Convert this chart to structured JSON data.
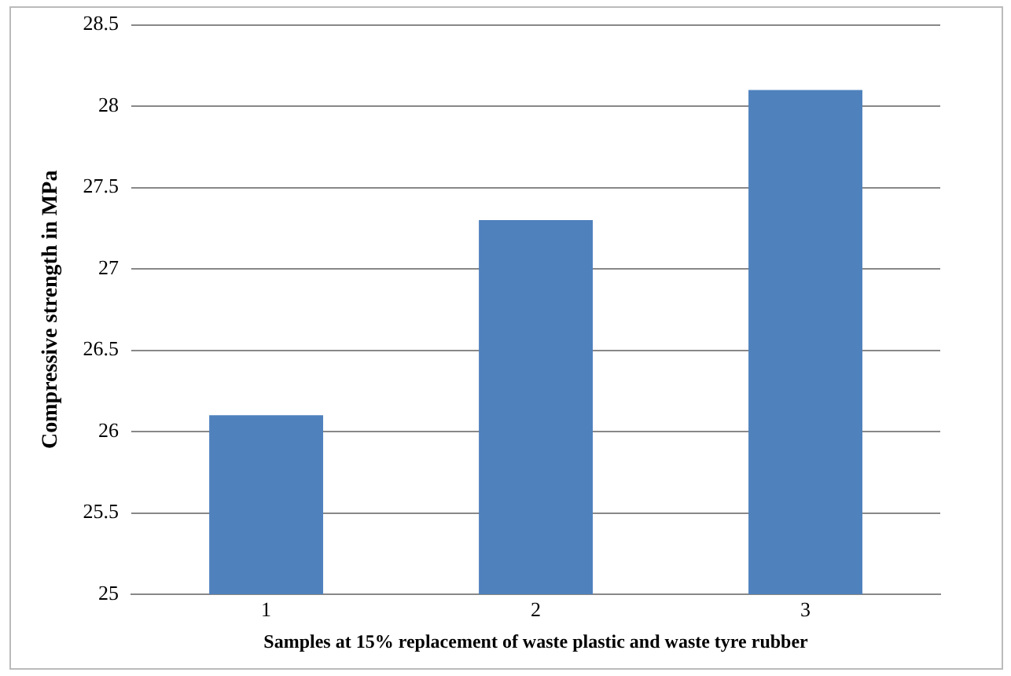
{
  "chart_data": {
    "type": "bar",
    "xlabel": "Samples at 15% replacement of waste plastic and waste tyre rubber",
    "ylabel": "Compressive strength in MPa",
    "categories": [
      "1",
      "2",
      "3"
    ],
    "values": [
      26.1,
      27.3,
      28.1
    ],
    "color": "#4f81bd",
    "ylim": [
      25,
      28.5
    ],
    "yticks": [
      25,
      25.5,
      26,
      26.5,
      27,
      27.5,
      28,
      28.5
    ],
    "grid": "y",
    "legend": false
  }
}
